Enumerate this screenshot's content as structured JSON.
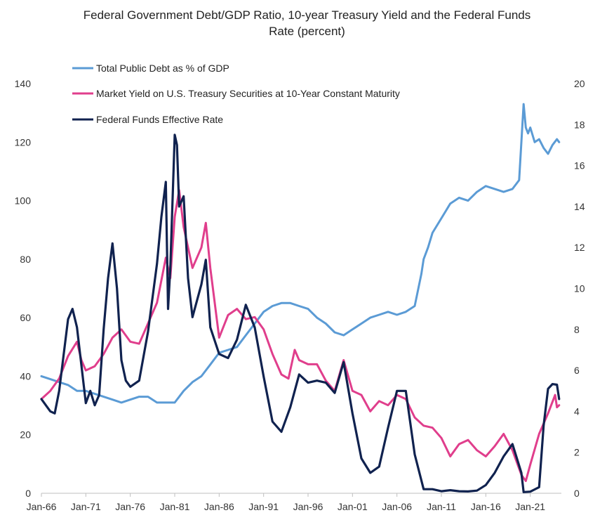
{
  "chart_data": {
    "type": "line",
    "title_line1": "Federal Government Debt/GDP Ratio, 10-year Treasury Yield and the Federal Funds",
    "title_line2": "Rate (percent)",
    "x_ticks": [
      "Jan-66",
      "Jan-71",
      "Jan-76",
      "Jan-81",
      "Jan-86",
      "Jan-91",
      "Jan-96",
      "Jan-01",
      "Jan-06",
      "Jan-11",
      "Jan-16",
      "Jan-21"
    ],
    "x_range": [
      1966.0,
      2024.5
    ],
    "y_left": {
      "range": [
        0,
        140
      ],
      "ticks": [
        "0",
        "20",
        "40",
        "60",
        "80",
        "100",
        "120",
        "140"
      ]
    },
    "y_right": {
      "range": [
        0,
        20
      ],
      "ticks": [
        "0",
        "2",
        "4",
        "6",
        "8",
        "10",
        "12",
        "14",
        "16",
        "18",
        "20"
      ]
    },
    "grid": false,
    "legend_position": "top-left",
    "series": [
      {
        "name": "Total Public Debt as % of GDP",
        "color": "#5b9bd5",
        "axis": "left",
        "x": [
          1966,
          1967,
          1968,
          1969,
          1970,
          1971,
          1972,
          1973,
          1974,
          1975,
          1976,
          1977,
          1978,
          1979,
          1980,
          1981,
          1982,
          1983,
          1984,
          1985,
          1986,
          1987,
          1988,
          1989,
          1990,
          1991,
          1992,
          1993,
          1994,
          1995,
          1996,
          1997,
          1998,
          1999,
          2000,
          2001,
          2002,
          2003,
          2004,
          2005,
          2006,
          2007,
          2008,
          2008.75,
          2009,
          2009.5,
          2010,
          2011,
          2012,
          2013,
          2014,
          2015,
          2016,
          2017,
          2018,
          2019,
          2019.75,
          2020.25,
          2020.5,
          2020.75,
          2021,
          2021.5,
          2022,
          2022.5,
          2023,
          2023.5,
          2024,
          2024.25
        ],
        "y": [
          40,
          39,
          38,
          37,
          35,
          35,
          34,
          33,
          32,
          31,
          32,
          33,
          33,
          31,
          31,
          31,
          35,
          38,
          40,
          44,
          48,
          49,
          50,
          54,
          58,
          62,
          64,
          65,
          65,
          64,
          63,
          60,
          58,
          55,
          54,
          56,
          58,
          60,
          61,
          62,
          61,
          62,
          64,
          75,
          80,
          84,
          89,
          94,
          99,
          101,
          100,
          103,
          105,
          104,
          103,
          104,
          107,
          133,
          125,
          123,
          125,
          120,
          121,
          118,
          116,
          119,
          121,
          120
        ]
      },
      {
        "name": "Market Yield on U.S. Treasury Securities at 10-Year Constant Maturity",
        "color": "#e03e8c",
        "axis": "right",
        "x": [
          1966,
          1967,
          1968,
          1969,
          1970,
          1970.5,
          1971,
          1972,
          1973,
          1974,
          1975,
          1976,
          1977,
          1978,
          1979,
          1980,
          1980.5,
          1981,
          1981.5,
          1982,
          1983,
          1984,
          1984.5,
          1985,
          1986,
          1987,
          1988,
          1989,
          1990,
          1991,
          1992,
          1993,
          1993.8,
          1994.5,
          1995,
          1996,
          1997,
          1998,
          1999,
          2000,
          2001,
          2002,
          2003,
          2004,
          2005,
          2006,
          2007,
          2008,
          2009,
          2010,
          2011,
          2012,
          2013,
          2014,
          2015,
          2016,
          2017,
          2018,
          2019,
          2020,
          2020.5,
          2021,
          2022,
          2023,
          2023.8,
          2024,
          2024.25
        ],
        "y": [
          4.6,
          5.0,
          5.6,
          6.7,
          7.4,
          6.5,
          6.0,
          6.2,
          6.8,
          7.6,
          8.0,
          7.4,
          7.3,
          8.3,
          9.3,
          11.5,
          10.5,
          13.5,
          14.8,
          13.0,
          11.0,
          12.0,
          13.2,
          11.0,
          7.6,
          8.7,
          9.0,
          8.5,
          8.6,
          8.0,
          6.8,
          5.8,
          5.6,
          7.0,
          6.5,
          6.3,
          6.3,
          5.5,
          5.0,
          6.5,
          5.0,
          4.8,
          4.0,
          4.5,
          4.3,
          4.8,
          4.6,
          3.7,
          3.3,
          3.2,
          2.7,
          1.8,
          2.4,
          2.6,
          2.1,
          1.8,
          2.3,
          2.9,
          2.1,
          0.9,
          0.6,
          1.4,
          2.9,
          3.9,
          4.8,
          4.2,
          4.3
        ]
      },
      {
        "name": "Federal Funds Effective Rate",
        "color": "#10224f",
        "axis": "right",
        "x": [
          1966,
          1967,
          1967.5,
          1968,
          1969,
          1969.5,
          1970,
          1971,
          1971.5,
          1972,
          1972.5,
          1973,
          1973.5,
          1974,
          1974.5,
          1975,
          1975.5,
          1976,
          1977,
          1978,
          1979,
          1979.5,
          1980,
          1980.25,
          1980.5,
          1981,
          1981.25,
          1981.5,
          1982,
          1982.5,
          1983,
          1984,
          1984.5,
          1985,
          1986,
          1987,
          1988,
          1989,
          1990,
          1991,
          1992,
          1993,
          1994,
          1995,
          1996,
          1997,
          1998,
          1999,
          2000,
          2001,
          2002,
          2003,
          2004,
          2005,
          2006,
          2007,
          2008,
          2009,
          2010,
          2011,
          2012,
          2013,
          2014,
          2015,
          2016,
          2017,
          2018,
          2019,
          2020,
          2020.25,
          2021,
          2022,
          2022.5,
          2023,
          2023.5,
          2024,
          2024.25
        ],
        "y": [
          4.6,
          4.0,
          3.9,
          5.0,
          8.5,
          9.0,
          8.1,
          4.4,
          5.0,
          4.3,
          4.8,
          8.0,
          10.5,
          12.2,
          10.0,
          6.5,
          5.5,
          5.2,
          5.5,
          7.9,
          11.2,
          13.5,
          15.2,
          9.0,
          11.0,
          17.5,
          17.0,
          14.0,
          14.5,
          10.5,
          8.6,
          10.2,
          11.4,
          8.1,
          6.8,
          6.6,
          7.5,
          9.2,
          8.1,
          5.7,
          3.5,
          3.0,
          4.2,
          5.8,
          5.4,
          5.5,
          5.4,
          4.9,
          6.4,
          3.9,
          1.7,
          1.0,
          1.3,
          3.2,
          5.0,
          5.0,
          1.9,
          0.2,
          0.2,
          0.1,
          0.15,
          0.1,
          0.09,
          0.13,
          0.4,
          1.0,
          1.8,
          2.4,
          1.0,
          0.06,
          0.08,
          0.3,
          3.3,
          5.1,
          5.33,
          5.3,
          4.6
        ]
      }
    ]
  }
}
